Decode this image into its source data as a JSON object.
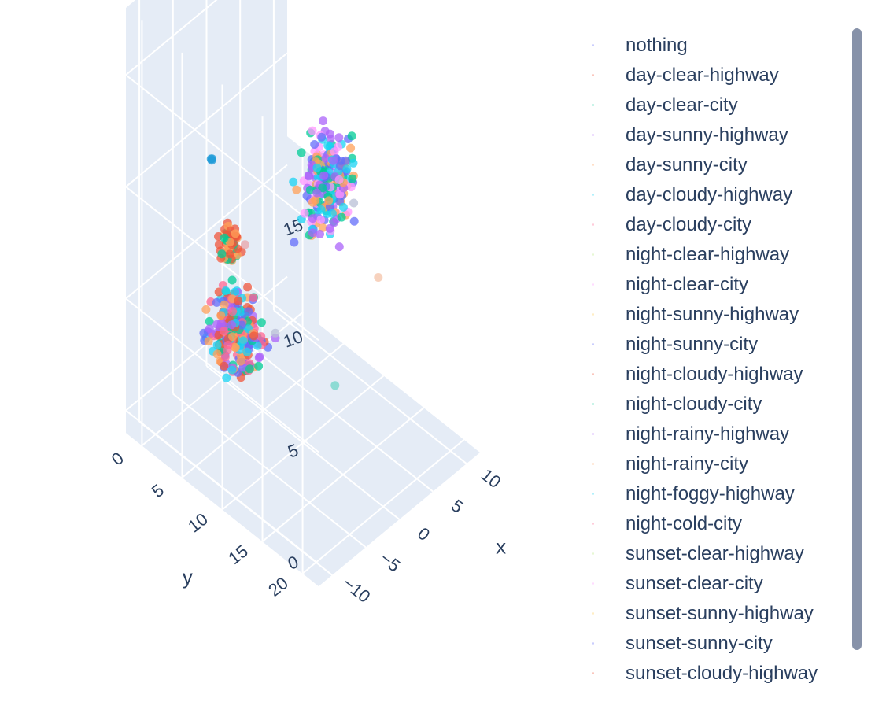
{
  "chart_data": {
    "type": "scatter3d",
    "title": "",
    "axes": {
      "x": {
        "label": "x",
        "ticks": [
          -10,
          -5,
          0,
          5,
          10
        ],
        "range": [
          -12,
          12
        ]
      },
      "y": {
        "label": "y",
        "ticks": [
          0,
          5,
          10,
          15,
          20
        ],
        "range": [
          -2,
          22
        ]
      },
      "z": {
        "label": "",
        "ticks": [
          0,
          5,
          10,
          15
        ],
        "range": [
          -1,
          18
        ]
      }
    },
    "grid": true,
    "legend_position": "right",
    "series": [
      {
        "name": "nothing",
        "color": "#636efa"
      },
      {
        "name": "day-clear-highway",
        "color": "#EF553B"
      },
      {
        "name": "day-clear-city",
        "color": "#00cc96"
      },
      {
        "name": "day-sunny-highway",
        "color": "#ab63fa"
      },
      {
        "name": "day-sunny-city",
        "color": "#FFA15A"
      },
      {
        "name": "day-cloudy-highway",
        "color": "#19d3f3"
      },
      {
        "name": "day-cloudy-city",
        "color": "#FF6692"
      },
      {
        "name": "night-clear-highway",
        "color": "#B6E880"
      },
      {
        "name": "night-clear-city",
        "color": "#FF97FF"
      },
      {
        "name": "night-sunny-highway",
        "color": "#FECB52"
      },
      {
        "name": "night-sunny-city",
        "color": "#636efa"
      },
      {
        "name": "night-cloudy-highway",
        "color": "#EF553B"
      },
      {
        "name": "night-cloudy-city",
        "color": "#00cc96"
      },
      {
        "name": "night-rainy-highway",
        "color": "#ab63fa"
      },
      {
        "name": "night-rainy-city",
        "color": "#FFA15A"
      },
      {
        "name": "night-foggy-highway",
        "color": "#19d3f3"
      },
      {
        "name": "night-cold-city",
        "color": "#FF6692"
      },
      {
        "name": "sunset-clear-highway",
        "color": "#B6E880"
      },
      {
        "name": "sunset-clear-city",
        "color": "#FF97FF"
      },
      {
        "name": "sunset-sunny-highway",
        "color": "#FECB52"
      },
      {
        "name": "sunset-sunny-city",
        "color": "#636efa"
      },
      {
        "name": "sunset-cloudy-highway",
        "color": "#EF553B"
      }
    ],
    "clusters": [
      {
        "center": [
          0,
          1.5,
          1.5
        ],
        "spread": [
          1.2,
          1.2,
          0.8
        ],
        "count": 240,
        "palette": [
          "#FF6692",
          "#ab63fa",
          "#636efa",
          "#FFA15A",
          "#EF553B",
          "#19d3f3",
          "#00cc96"
        ]
      },
      {
        "center": [
          -1.5,
          2.2,
          6
        ],
        "spread": [
          0.4,
          0.4,
          0.4
        ],
        "count": 60,
        "palette": [
          "#00cc96",
          "#EF553B",
          "#FFA15A"
        ]
      },
      {
        "center": [
          -0.9,
          -0.6,
          8.9
        ],
        "spread": [
          0.1,
          0.1,
          0.1
        ],
        "count": 3,
        "palette": [
          "#1f9bd8"
        ]
      },
      {
        "center": [
          -7,
          19,
          15
        ],
        "spread": [
          1.4,
          0.9,
          1.0
        ],
        "count": 240,
        "palette": [
          "#FFA15A",
          "#00cc96",
          "#ab63fa",
          "#636efa",
          "#FF97FF",
          "#19d3f3"
        ]
      }
    ],
    "outliers": [
      {
        "x": 2.7,
        "y": 4.3,
        "z": 1.6,
        "color": "#b8bfd6"
      },
      {
        "x": -8.6,
        "y": 10,
        "z": 10,
        "color": "#e8a4a8"
      },
      {
        "x": 0,
        "y": 14,
        "z": 2.7,
        "color": "#6fd6c8"
      },
      {
        "x": -2,
        "y": 18,
        "z": 12.5,
        "color": "#b8bfd6"
      },
      {
        "x": -6,
        "y": 24.4,
        "z": 12,
        "color": "#f4c3a8"
      }
    ]
  }
}
